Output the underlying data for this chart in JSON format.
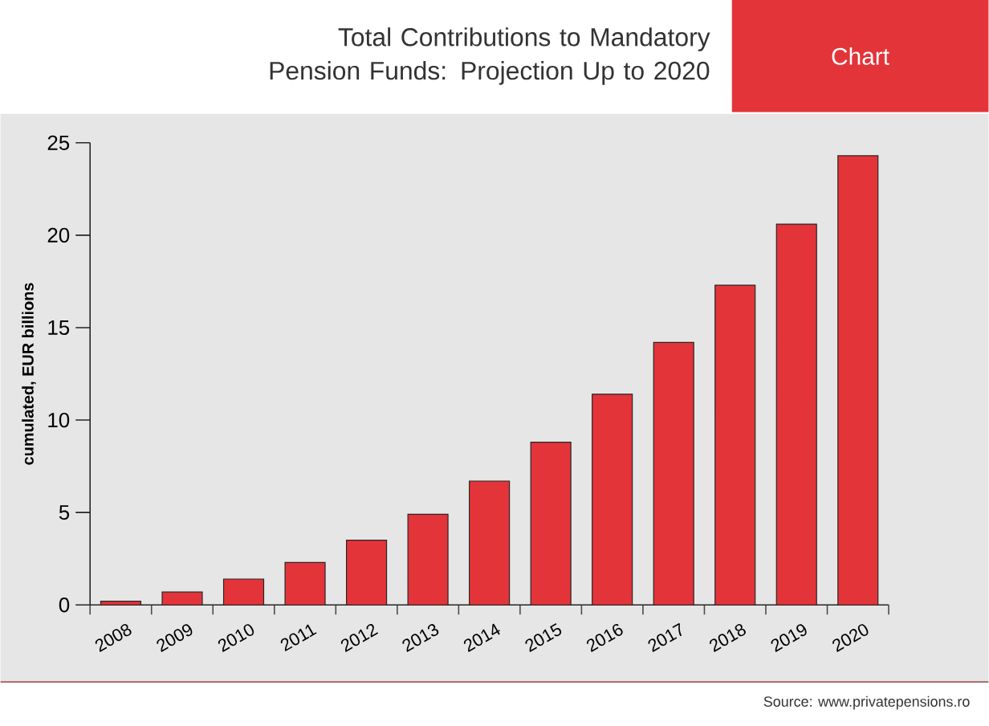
{
  "chart_data": {
    "type": "bar",
    "title": "Total Contributions to Mandatory Pension Funds: Projection Up to 2020",
    "ylabel": "cumulated, EUR billions",
    "categories": [
      "2008",
      "2009",
      "2010",
      "2011",
      "2012",
      "2013",
      "2014",
      "2015",
      "2016",
      "2017",
      "2018",
      "2019",
      "2020"
    ],
    "values": [
      0.2,
      0.7,
      1.4,
      2.3,
      3.5,
      4.9,
      6.7,
      8.8,
      11.4,
      14.2,
      17.3,
      20.6,
      24.3
    ],
    "color": "#e3343a",
    "ylim": [
      0,
      25
    ],
    "yticks": [
      0,
      5,
      10,
      15,
      20,
      25
    ],
    "annotations": [
      "Chart",
      "Source: www.privatepensions.ro"
    ]
  }
}
